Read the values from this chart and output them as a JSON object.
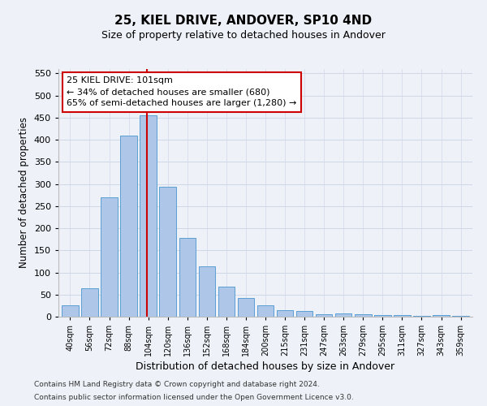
{
  "title1": "25, KIEL DRIVE, ANDOVER, SP10 4ND",
  "title2": "Size of property relative to detached houses in Andover",
  "xlabel": "Distribution of detached houses by size in Andover",
  "ylabel": "Number of detached properties",
  "categories": [
    "40sqm",
    "56sqm",
    "72sqm",
    "88sqm",
    "104sqm",
    "120sqm",
    "136sqm",
    "152sqm",
    "168sqm",
    "184sqm",
    "200sqm",
    "215sqm",
    "231sqm",
    "247sqm",
    "263sqm",
    "279sqm",
    "295sqm",
    "311sqm",
    "327sqm",
    "343sqm",
    "359sqm"
  ],
  "values": [
    25,
    65,
    270,
    410,
    455,
    293,
    178,
    113,
    68,
    42,
    25,
    15,
    12,
    6,
    7,
    5,
    4,
    3,
    2,
    4,
    2
  ],
  "bar_color": "#aec6e8",
  "bar_edge_color": "#5a9fd4",
  "grid_color": "#d0d8e8",
  "annotation_text": "25 KIEL DRIVE: 101sqm\n← 34% of detached houses are smaller (680)\n65% of semi-detached houses are larger (1,280) →",
  "annotation_box_color": "#ffffff",
  "annotation_box_edge_color": "#cc0000",
  "property_line_color": "#cc0000",
  "ylim": [
    0,
    560
  ],
  "yticks": [
    0,
    50,
    100,
    150,
    200,
    250,
    300,
    350,
    400,
    450,
    500,
    550
  ],
  "footer1": "Contains HM Land Registry data © Crown copyright and database right 2024.",
  "footer2": "Contains public sector information licensed under the Open Government Licence v3.0.",
  "bg_color": "#eef2f8"
}
